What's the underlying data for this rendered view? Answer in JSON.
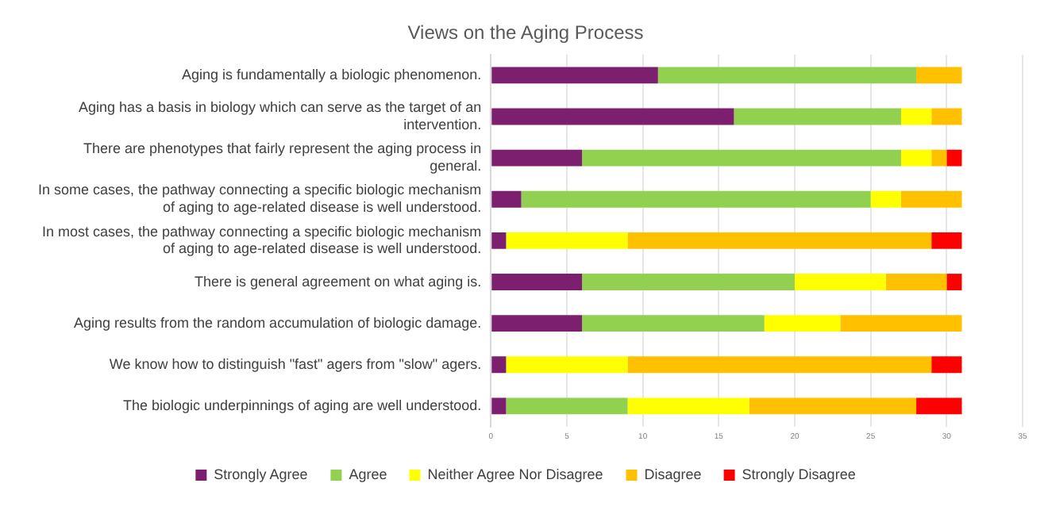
{
  "chart_data": {
    "type": "bar",
    "orientation": "horizontal",
    "stacked": true,
    "title": "Views on the Aging Process",
    "categories": [
      "Aging is fundamentally a biologic phenomenon.",
      "Aging has a basis in biology which can serve as the target of an intervention.",
      "There are phenotypes that fairly represent the aging process in general.",
      "In some cases, the pathway connecting a specific biologic mechanism of aging to age-related disease is well understood.",
      "In most cases, the pathway connecting a specific biologic mechanism of aging to age-related disease is well understood.",
      "There is general agreement on what aging is.",
      "Aging results from the random accumulation of biologic damage.",
      "We know how to distinguish \"fast\" agers from \"slow\" agers.",
      "The biologic underpinnings of aging are well understood."
    ],
    "series": [
      {
        "name": "Strongly Agree",
        "color": "#7b1f6e",
        "values": [
          11,
          16,
          6,
          2,
          1,
          6,
          6,
          1,
          1
        ]
      },
      {
        "name": "Agree",
        "color": "#92d050",
        "values": [
          17,
          11,
          21,
          23,
          0,
          14,
          12,
          0,
          8
        ]
      },
      {
        "name": "Neither Agree Nor Disagree",
        "color": "#ffff00",
        "values": [
          0,
          2,
          2,
          2,
          8,
          6,
          5,
          8,
          8
        ]
      },
      {
        "name": "Disagree",
        "color": "#ffc000",
        "values": [
          3,
          2,
          1,
          4,
          20,
          4,
          8,
          20,
          11
        ]
      },
      {
        "name": "Strongly Disagree",
        "color": "#ff0000",
        "values": [
          0,
          0,
          1,
          0,
          2,
          1,
          0,
          2,
          3
        ]
      }
    ],
    "xlim": [
      0,
      35
    ],
    "xticks": [
      0,
      5,
      10,
      15,
      20,
      25,
      30,
      35
    ],
    "grid": "x",
    "legend": "bottom"
  }
}
